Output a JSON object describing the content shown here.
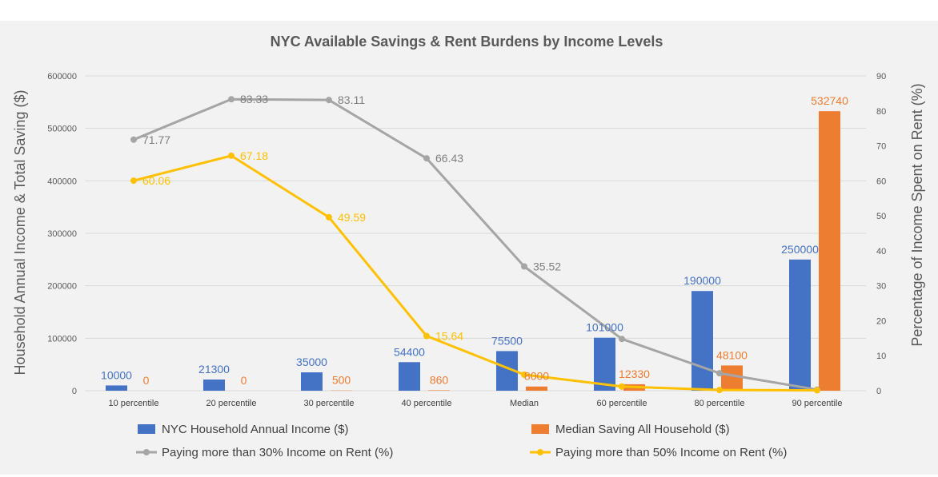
{
  "chart_data": {
    "type": "bar",
    "title": "NYC Available Savings & Rent Burdens by Income Levels",
    "ylabel_left": "Household Annual Income & Total Saving ($)",
    "ylabel_right": "Percentage of Income Spent on Rent (%)",
    "ylim_left": [
      0,
      600000
    ],
    "ylim_right": [
      0,
      90
    ],
    "left_ticks": [
      "0",
      "100000",
      "200000",
      "300000",
      "400000",
      "500000",
      "600000"
    ],
    "right_ticks": [
      "0",
      "10",
      "20",
      "30",
      "40",
      "50",
      "60",
      "70",
      "80",
      "90"
    ],
    "categories": [
      "10 percentile",
      "20 percentile",
      "30 percentile",
      "40 percentile",
      "Median",
      "60 percentile",
      "80 percentile",
      "90 percentile"
    ],
    "grid": true,
    "legend_position": "bottom",
    "series": [
      {
        "name": "NYC Household Annual Income ($)",
        "kind": "bar",
        "axis": "left",
        "color": "#4472c4",
        "values": [
          10000,
          21300,
          35000,
          54400,
          75500,
          101000,
          190000,
          250000
        ],
        "labels": [
          "10000",
          "21300",
          "35000",
          "54400",
          "75500",
          "101000",
          "190000",
          "250000"
        ]
      },
      {
        "name": "Median Saving All Household ($)",
        "kind": "bar",
        "axis": "left",
        "color": "#ed7d31",
        "values": [
          0,
          0,
          500,
          860,
          8000,
          12330,
          48100,
          532740
        ],
        "labels": [
          "0",
          "0",
          "500",
          "860",
          "8000",
          "12330",
          "48100",
          "532740"
        ]
      },
      {
        "name": "Paying more than 30% Income on Rent (%)",
        "kind": "line",
        "axis": "right",
        "color": "#a5a5a5",
        "values": [
          71.77,
          83.33,
          83.11,
          66.43,
          35.52,
          14.8,
          5.0,
          0.3
        ],
        "labels": [
          "71.77",
          "83.33",
          "83.11",
          "66.43",
          "35.52",
          null,
          null,
          null
        ]
      },
      {
        "name": "Paying more than 50% Income on Rent (%)",
        "kind": "line",
        "axis": "right",
        "color": "#ffc000",
        "values": [
          60.06,
          67.18,
          49.59,
          15.64,
          4.6,
          1.2,
          0.2,
          0.1
        ],
        "labels": [
          "60.06",
          "67.18",
          "49.59",
          "15.64",
          null,
          null,
          null,
          null
        ]
      }
    ]
  }
}
